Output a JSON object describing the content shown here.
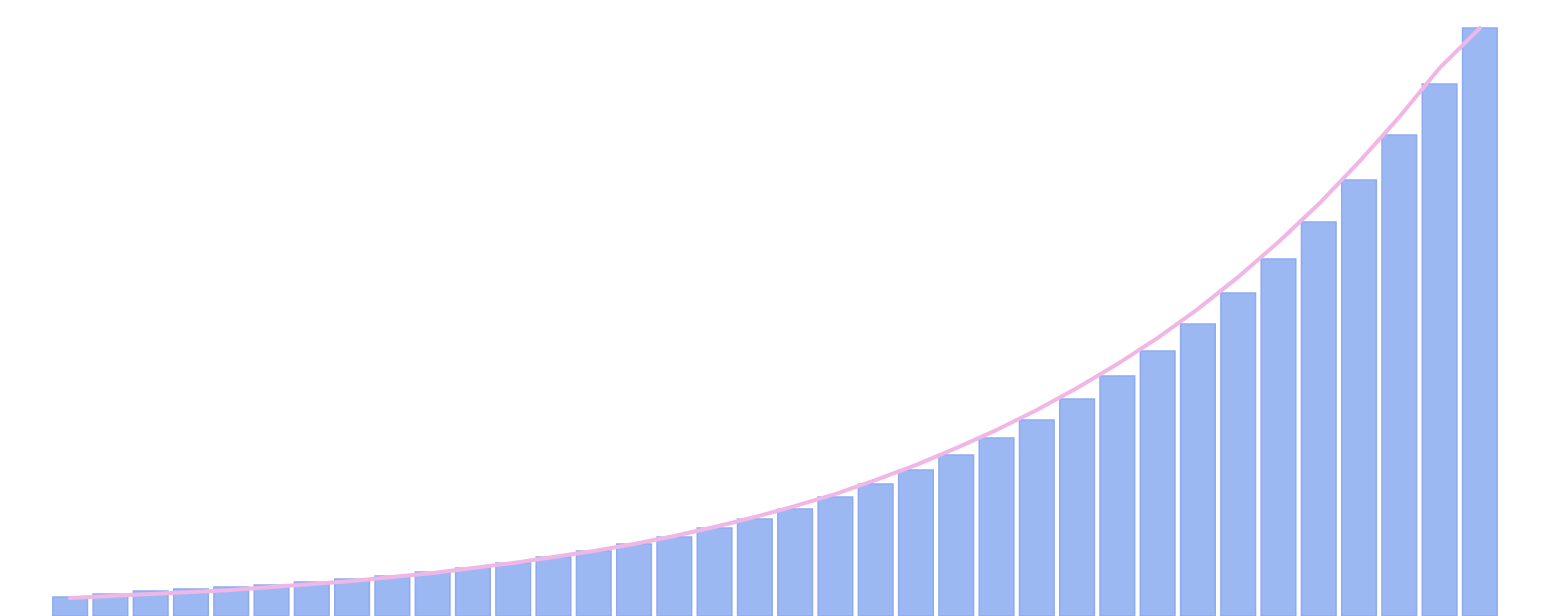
{
  "chart_data": {
    "type": "bar",
    "categories": [
      null,
      null,
      null,
      null,
      null,
      null,
      null,
      null,
      null,
      null,
      null,
      null,
      null,
      null,
      null,
      null,
      null,
      null,
      null,
      null,
      null,
      null,
      null,
      null,
      null,
      null,
      null,
      null,
      null,
      null,
      null,
      null,
      null,
      null,
      null,
      null
    ],
    "series": [
      {
        "type": "bar",
        "color": "#9bb8f2",
        "values": [
          19,
          22,
          25,
          27,
          29,
          31,
          34,
          37,
          40,
          44,
          48,
          53,
          59,
          65,
          72,
          79,
          88,
          97,
          107,
          119,
          132,
          146,
          161,
          178,
          196,
          217,
          240,
          265,
          292,
          323,
          357,
          394,
          436,
          481,
          532,
          588
        ]
      },
      {
        "type": "line",
        "color": "#f0b6e6",
        "values": [
          18,
          20,
          22,
          24,
          26,
          29,
          32,
          35,
          39,
          43,
          48,
          53,
          59,
          65,
          72,
          80,
          89,
          99,
          110,
          122,
          136,
          151,
          168,
          186,
          206,
          228,
          252,
          278,
          307,
          339,
          374,
          412,
          454,
          499,
          548,
          588
        ]
      }
    ],
    "ylim": [
      0,
      616
    ]
  }
}
